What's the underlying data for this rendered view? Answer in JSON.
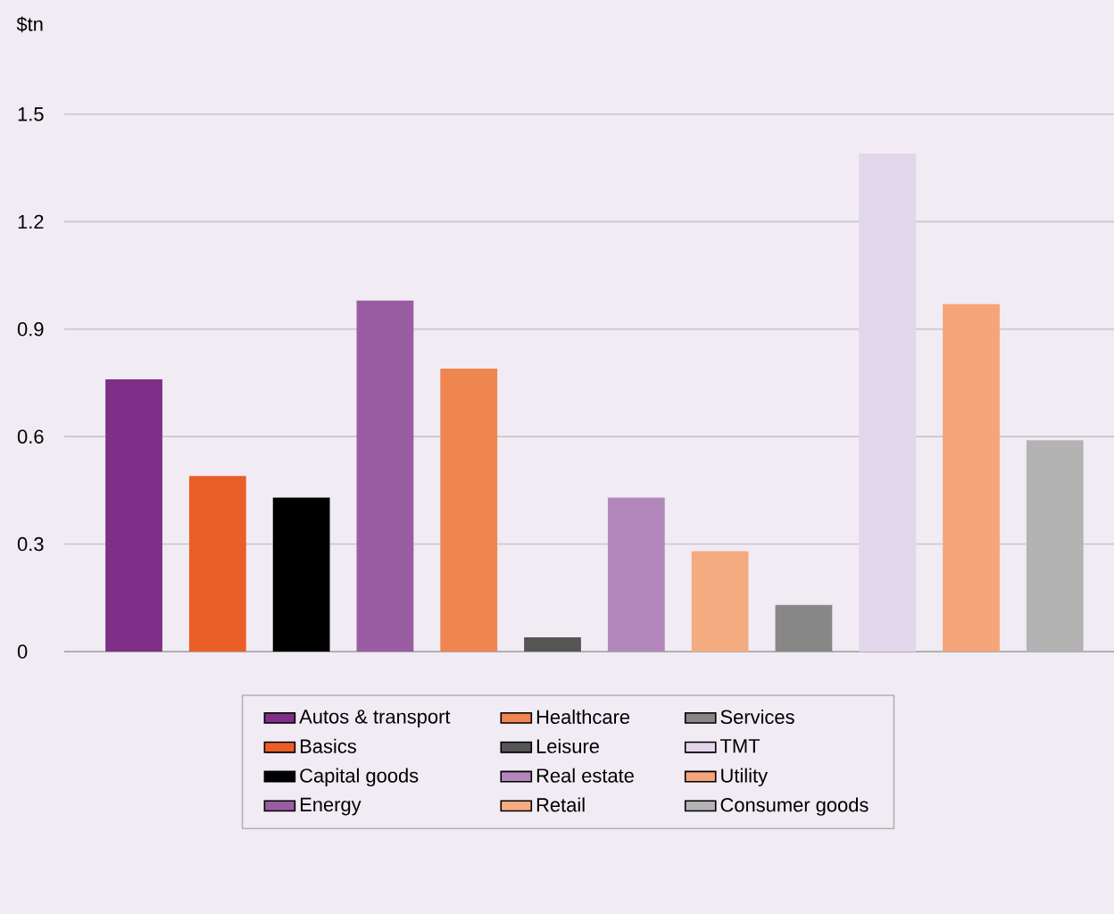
{
  "chart_data": {
    "type": "bar",
    "ylabel": "$tn",
    "categories": [
      null,
      null,
      null,
      null,
      null,
      null,
      null,
      null,
      null,
      null,
      null,
      null
    ],
    "ylim": [
      0,
      1.5
    ],
    "yticks": [
      0,
      0.3,
      0.6,
      0.9,
      1.2,
      1.5
    ],
    "grid": "y",
    "legend": "bottom",
    "tick_labels": "y",
    "series": [
      {
        "name": "Autos & transport",
        "color": "#7f2f87",
        "values": [
          0.76,
          null,
          null,
          null,
          null,
          null,
          null,
          null,
          null,
          null,
          null,
          null
        ]
      },
      {
        "name": "Basics",
        "color": "#ea5f28",
        "values": [
          null,
          0.49,
          null,
          null,
          null,
          null,
          null,
          null,
          null,
          null,
          null,
          null
        ]
      },
      {
        "name": "Capital goods",
        "color": "#000000",
        "values": [
          null,
          null,
          0.43,
          null,
          null,
          null,
          null,
          null,
          null,
          null,
          null,
          null
        ]
      },
      {
        "name": "Energy",
        "color": "#9a5ca2",
        "values": [
          null,
          null,
          null,
          0.98,
          null,
          null,
          null,
          null,
          null,
          null,
          null,
          null
        ]
      },
      {
        "name": "Healthcare",
        "color": "#ef854f",
        "values": [
          null,
          null,
          null,
          null,
          0.79,
          null,
          null,
          null,
          null,
          null,
          null,
          null
        ]
      },
      {
        "name": "Leisure",
        "color": "#555555",
        "values": [
          null,
          null,
          null,
          null,
          null,
          0.04,
          null,
          null,
          null,
          null,
          null,
          null
        ]
      },
      {
        "name": "Real estate",
        "color": "#b287bb",
        "values": [
          null,
          null,
          null,
          null,
          null,
          null,
          0.43,
          null,
          null,
          null,
          null,
          null
        ]
      },
      {
        "name": "Retail",
        "color": "#f5ab80",
        "values": [
          null,
          null,
          null,
          null,
          null,
          null,
          null,
          0.28,
          null,
          null,
          null,
          null
        ]
      },
      {
        "name": "Services",
        "color": "#878787",
        "values": [
          null,
          null,
          null,
          null,
          null,
          null,
          null,
          null,
          0.13,
          null,
          null,
          null
        ]
      },
      {
        "name": "TMT",
        "color": "#e2d6ea",
        "values": [
          null,
          null,
          null,
          null,
          null,
          null,
          null,
          null,
          null,
          1.39,
          null,
          null
        ]
      },
      {
        "name": "Utility",
        "color": "#f5a579",
        "values": [
          null,
          null,
          null,
          null,
          null,
          null,
          null,
          null,
          null,
          null,
          0.97,
          null
        ]
      },
      {
        "name": "Consumer goods",
        "color": "#b3b3b3",
        "values": [
          null,
          null,
          null,
          null,
          null,
          null,
          null,
          null,
          null,
          null,
          null,
          0.59
        ]
      }
    ]
  }
}
